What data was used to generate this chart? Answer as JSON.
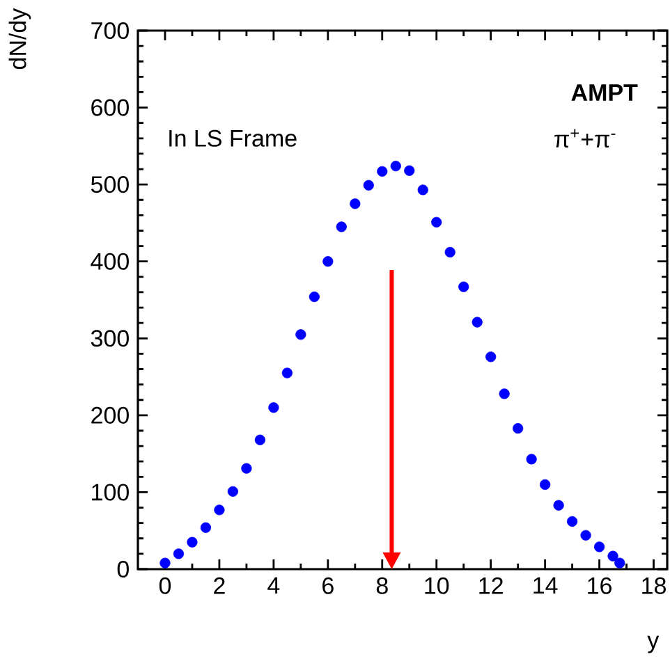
{
  "chart_data": {
    "type": "scatter",
    "xlabel": "y",
    "ylabel": "dN/dy",
    "annotations": [
      "In LS Frame",
      "**AMPT**",
      "π$^{+}$+π$^{-}$"
    ],
    "x": [
      0,
      0.5,
      1,
      1.5,
      2,
      2.5,
      3,
      3.5,
      4,
      4.5,
      5,
      5.5,
      6,
      6.5,
      7,
      7.5,
      8,
      8.5,
      9,
      9.5,
      10,
      10.5,
      11,
      11.5,
      12,
      12.5,
      13,
      13.5,
      14,
      14.5,
      15,
      15.5,
      16,
      16.5,
      16.75
    ],
    "series": [
      {
        "color": "#0000ff",
        "values": [
          8,
          20,
          35,
          54,
          77,
          101,
          131,
          168,
          210,
          255,
          305,
          354,
          400,
          445,
          475,
          499,
          517,
          524,
          518,
          493,
          451,
          412,
          367,
          321,
          276,
          228,
          183,
          143,
          110,
          83,
          62,
          44,
          29,
          17,
          8
        ]
      }
    ],
    "marker": "circle",
    "xlim": [
      -1,
      18.5
    ],
    "ylim": [
      0,
      700
    ],
    "xticks": [
      0,
      2,
      4,
      6,
      8,
      10,
      12,
      14,
      16,
      18
    ],
    "yticks": [
      0,
      100,
      200,
      300,
      400,
      500,
      600,
      700
    ]
  }
}
